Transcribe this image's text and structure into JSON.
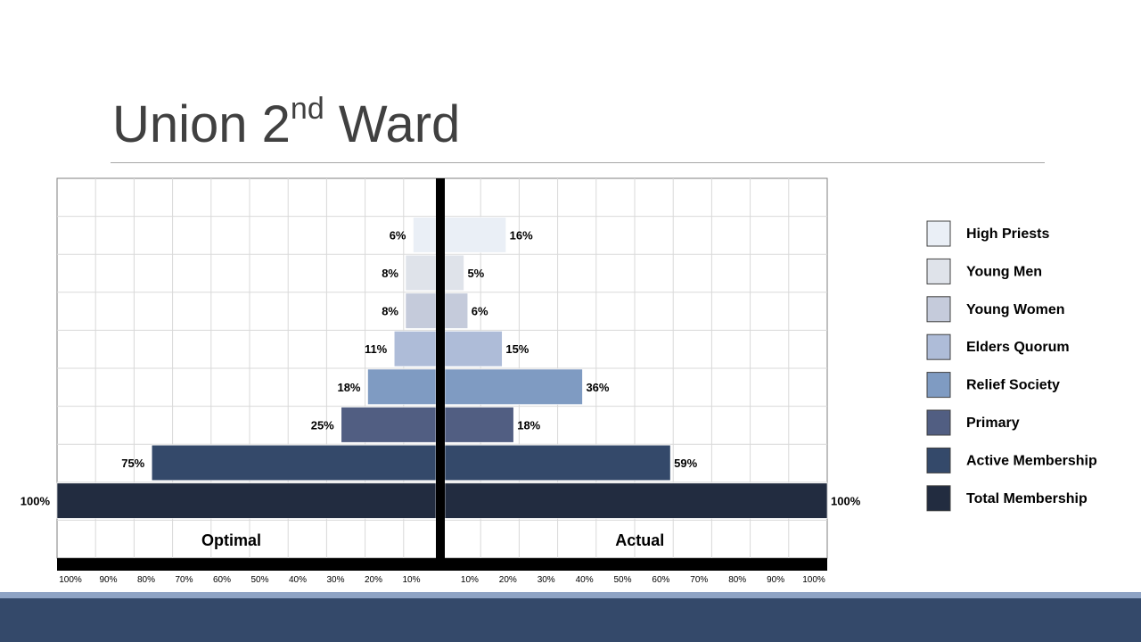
{
  "slide": {
    "title_main": "Union 2",
    "title_sup": "nd",
    "title_end": " Ward"
  },
  "colors": {
    "grid": "#d9d9d9",
    "divider": "#000000",
    "label": "#000000",
    "footer": "#34496a",
    "footer_accent": "#8ea3c4"
  },
  "chart_data": {
    "type": "bar",
    "orientation": "horizontal",
    "layout": "back-to-back",
    "categories": [
      "High Priests",
      "Young Men",
      "Young Women",
      "Elders Quorum",
      "Relief Society",
      "Primary",
      "Active Membership",
      "Total Membership"
    ],
    "colors": [
      "#eaeff6",
      "#dfe3ea",
      "#c5cbdb",
      "#aebcd8",
      "#7f9bc2",
      "#515e82",
      "#34496a",
      "#222c40"
    ],
    "series": [
      {
        "name": "Optimal",
        "side": "left",
        "values": [
          6,
          8,
          8,
          11,
          18,
          25,
          75,
          100
        ]
      },
      {
        "name": "Actual",
        "side": "right",
        "values": [
          16,
          5,
          6,
          15,
          36,
          18,
          59,
          100
        ]
      }
    ],
    "value_suffix": "%",
    "xlim": [
      0,
      100
    ],
    "xticks": [
      "100%",
      "90%",
      "80%",
      "70%",
      "60%",
      "50%",
      "40%",
      "30%",
      "20%",
      "10%"
    ],
    "xticks_right": [
      "10%",
      "20%",
      "30%",
      "40%",
      "50%",
      "60%",
      "70%",
      "80%",
      "90%",
      "100%"
    ],
    "grid": true,
    "legend": {
      "position": "right",
      "entries": [
        "High Priests",
        "Young Men",
        "Young Women",
        "Elders Quorum",
        "Relief Society",
        "Primary",
        "Active Membership",
        "Total Membership"
      ]
    }
  }
}
